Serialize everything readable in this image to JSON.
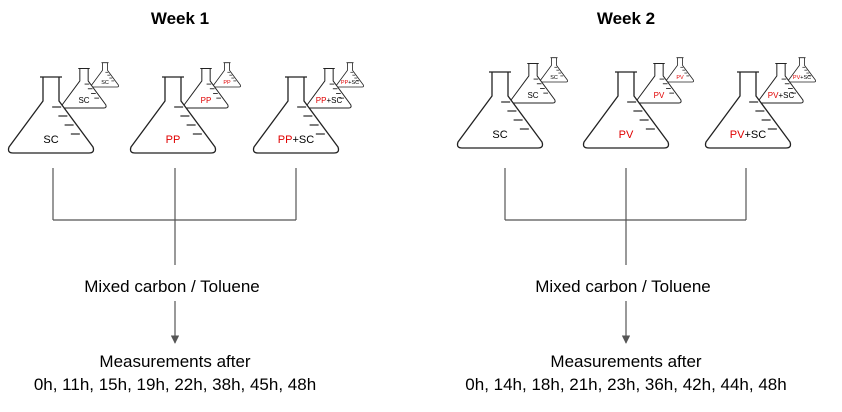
{
  "colors": {
    "text": "#000000",
    "treatment": "#e00000",
    "lines": "#555555"
  },
  "weeks": [
    {
      "title": "Week 1",
      "flask_groups": [
        {
          "large": [
            "SC"
          ],
          "medium": [
            "SC"
          ],
          "small": [
            "SC"
          ]
        },
        {
          "large": [
            "PP"
          ],
          "medium": [
            "PP"
          ],
          "small": [
            "PP"
          ]
        },
        {
          "large": [
            "PP",
            "+SC"
          ],
          "medium": [
            "PP",
            "+SC"
          ],
          "small": [
            "PP",
            "+SC"
          ]
        }
      ],
      "mix_label": "Mixed carbon / Toluene",
      "measure_title": "Measurements after",
      "measure_times": "0h, 11h, 15h, 19h, 22h, 38h, 45h, 48h"
    },
    {
      "title": "Week 2",
      "flask_groups": [
        {
          "large": [
            "SC"
          ],
          "medium": [
            "SC"
          ],
          "small": [
            "SC"
          ]
        },
        {
          "large": [
            "PV"
          ],
          "medium": [
            "PV"
          ],
          "small": [
            "PV"
          ]
        },
        {
          "large": [
            "PV",
            "+SC"
          ],
          "medium": [
            "PV",
            "+SC"
          ],
          "small": [
            "PV",
            "+SC"
          ]
        }
      ],
      "mix_label": "Mixed carbon / Toluene",
      "measure_title": "Measurements after",
      "measure_times": "0h, 14h, 18h, 21h, 23h, 36h, 42h, 44h, 48h"
    }
  ]
}
